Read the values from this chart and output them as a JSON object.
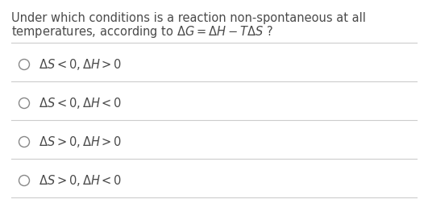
{
  "background_color": "#ffffff",
  "question_line1": "Under which conditions is a reaction non-spontaneous at all",
  "question_line2": "temperatures, according to $\\Delta G = \\Delta H - T\\Delta S$ ?",
  "options": [
    "$\\Delta S<0, \\Delta H>0$",
    "$\\Delta S<0, \\Delta H<0$",
    "$\\Delta S>0, \\Delta H>0$",
    "$\\Delta S>0, \\Delta H<0$"
  ],
  "text_color": "#4a4a4a",
  "line_color": "#cccccc",
  "circle_color": "#888888",
  "question_fontsize": 10.5,
  "option_fontsize": 10.5
}
